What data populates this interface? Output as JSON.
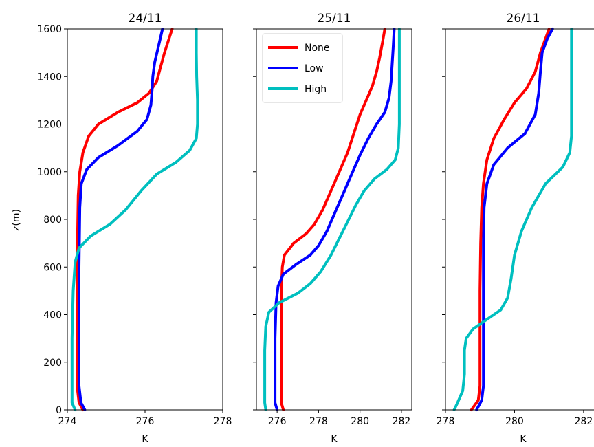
{
  "figure": {
    "ylabel": "z(m)"
  },
  "chart_data": [
    {
      "type": "line",
      "title": "24/11",
      "xlabel": "K",
      "ylabel": "z(m)",
      "xlim": [
        274,
        278
      ],
      "ylim": [
        0,
        1600
      ],
      "xticks": [
        "274",
        "276",
        "278"
      ],
      "yticks": [
        "0",
        "200",
        "400",
        "600",
        "800",
        "1000",
        "1200",
        "1400",
        "1600"
      ],
      "series": [
        {
          "name": "None",
          "color": "#ff0000",
          "points": [
            [
              274.4,
              0
            ],
            [
              274.3,
              30
            ],
            [
              274.25,
              100
            ],
            [
              274.25,
              300
            ],
            [
              274.25,
              600
            ],
            [
              274.28,
              900
            ],
            [
              274.32,
              1000
            ],
            [
              274.4,
              1080
            ],
            [
              274.55,
              1150
            ],
            [
              274.8,
              1200
            ],
            [
              275.3,
              1250
            ],
            [
              275.8,
              1290
            ],
            [
              276.1,
              1330
            ],
            [
              276.3,
              1380
            ],
            [
              276.4,
              1440
            ],
            [
              276.5,
              1500
            ],
            [
              276.6,
              1550
            ],
            [
              276.7,
              1600
            ]
          ]
        },
        {
          "name": "Low",
          "color": "#0000ff",
          "points": [
            [
              274.45,
              0
            ],
            [
              274.35,
              30
            ],
            [
              274.3,
              100
            ],
            [
              274.3,
              300
            ],
            [
              274.3,
              600
            ],
            [
              274.32,
              850
            ],
            [
              274.36,
              950
            ],
            [
              274.5,
              1010
            ],
            [
              274.8,
              1060
            ],
            [
              275.3,
              1110
            ],
            [
              275.8,
              1170
            ],
            [
              276.05,
              1220
            ],
            [
              276.15,
              1280
            ],
            [
              276.18,
              1340
            ],
            [
              276.2,
              1400
            ],
            [
              276.25,
              1460
            ],
            [
              276.35,
              1530
            ],
            [
              276.45,
              1600
            ]
          ]
        },
        {
          "name": "High",
          "color": "#00bfbf",
          "points": [
            [
              274.2,
              0
            ],
            [
              274.12,
              30
            ],
            [
              274.12,
              100
            ],
            [
              274.12,
              300
            ],
            [
              274.15,
              500
            ],
            [
              274.2,
              620
            ],
            [
              274.3,
              680
            ],
            [
              274.6,
              730
            ],
            [
              275.1,
              780
            ],
            [
              275.5,
              840
            ],
            [
              275.9,
              920
            ],
            [
              276.3,
              990
            ],
            [
              276.8,
              1040
            ],
            [
              277.15,
              1090
            ],
            [
              277.32,
              1140
            ],
            [
              277.35,
              1200
            ],
            [
              277.35,
              1300
            ],
            [
              277.33,
              1400
            ],
            [
              277.32,
              1500
            ],
            [
              277.32,
              1600
            ]
          ]
        }
      ]
    },
    {
      "type": "line",
      "title": "25/11",
      "xlabel": "K",
      "xlim": [
        275,
        282.5
      ],
      "ylim": [
        0,
        1600
      ],
      "xticks": [
        "276",
        "278",
        "280",
        "282"
      ],
      "legend": {
        "position": "top-left",
        "entries": [
          "None",
          "Low",
          "High"
        ]
      },
      "series": [
        {
          "name": "None",
          "color": "#ff0000",
          "points": [
            [
              276.3,
              0
            ],
            [
              276.2,
              30
            ],
            [
              276.2,
              100
            ],
            [
              276.2,
              300
            ],
            [
              276.2,
              500
            ],
            [
              276.25,
              600
            ],
            [
              276.35,
              650
            ],
            [
              276.8,
              700
            ],
            [
              277.4,
              740
            ],
            [
              277.8,
              780
            ],
            [
              278.2,
              840
            ],
            [
              278.6,
              920
            ],
            [
              279.0,
              1000
            ],
            [
              279.4,
              1080
            ],
            [
              279.7,
              1160
            ],
            [
              280.0,
              1240
            ],
            [
              280.3,
              1300
            ],
            [
              280.6,
              1360
            ],
            [
              280.8,
              1420
            ],
            [
              280.95,
              1480
            ],
            [
              281.1,
              1550
            ],
            [
              281.2,
              1600
            ]
          ]
        },
        {
          "name": "Low",
          "color": "#0000ff",
          "points": [
            [
              276.0,
              0
            ],
            [
              275.9,
              30
            ],
            [
              275.9,
              100
            ],
            [
              275.9,
              300
            ],
            [
              275.95,
              450
            ],
            [
              276.05,
              520
            ],
            [
              276.3,
              570
            ],
            [
              276.9,
              610
            ],
            [
              277.6,
              650
            ],
            [
              278.0,
              690
            ],
            [
              278.4,
              750
            ],
            [
              278.8,
              830
            ],
            [
              279.2,
              910
            ],
            [
              279.6,
              990
            ],
            [
              280.0,
              1070
            ],
            [
              280.4,
              1140
            ],
            [
              280.8,
              1200
            ],
            [
              281.2,
              1250
            ],
            [
              281.4,
              1310
            ],
            [
              281.5,
              1380
            ],
            [
              281.55,
              1450
            ],
            [
              281.6,
              1520
            ],
            [
              281.65,
              1600
            ]
          ]
        },
        {
          "name": "High",
          "color": "#00bfbf",
          "points": [
            [
              275.45,
              0
            ],
            [
              275.4,
              30
            ],
            [
              275.4,
              100
            ],
            [
              275.4,
              250
            ],
            [
              275.45,
              350
            ],
            [
              275.6,
              410
            ],
            [
              276.1,
              450
            ],
            [
              277.0,
              490
            ],
            [
              277.6,
              530
            ],
            [
              278.1,
              580
            ],
            [
              278.6,
              650
            ],
            [
              279.0,
              720
            ],
            [
              279.4,
              790
            ],
            [
              279.8,
              860
            ],
            [
              280.2,
              920
            ],
            [
              280.7,
              970
            ],
            [
              281.3,
              1010
            ],
            [
              281.7,
              1050
            ],
            [
              281.85,
              1100
            ],
            [
              281.9,
              1200
            ],
            [
              281.9,
              1300
            ],
            [
              281.9,
              1400
            ],
            [
              281.9,
              1500
            ],
            [
              281.9,
              1600
            ]
          ]
        }
      ]
    },
    {
      "type": "line",
      "title": "26/11",
      "xlabel": "K",
      "xlim": [
        278,
        282.5
      ],
      "ylim": [
        0,
        1600
      ],
      "xticks": [
        "278",
        "280",
        "282"
      ],
      "series": [
        {
          "name": "None",
          "color": "#ff0000",
          "points": [
            [
              278.75,
              0
            ],
            [
              278.95,
              40
            ],
            [
              279.0,
              100
            ],
            [
              279.0,
              300
            ],
            [
              279.0,
              500
            ],
            [
              279.02,
              700
            ],
            [
              279.05,
              850
            ],
            [
              279.1,
              950
            ],
            [
              279.2,
              1050
            ],
            [
              279.4,
              1140
            ],
            [
              279.7,
              1220
            ],
            [
              280.0,
              1290
            ],
            [
              280.35,
              1350
            ],
            [
              280.6,
              1420
            ],
            [
              280.75,
              1500
            ],
            [
              280.9,
              1560
            ],
            [
              281.0,
              1600
            ]
          ]
        },
        {
          "name": "Low",
          "color": "#0000ff",
          "points": [
            [
              278.9,
              0
            ],
            [
              279.05,
              40
            ],
            [
              279.1,
              100
            ],
            [
              279.1,
              300
            ],
            [
              279.1,
              500
            ],
            [
              279.1,
              700
            ],
            [
              279.12,
              850
            ],
            [
              279.2,
              950
            ],
            [
              279.4,
              1030
            ],
            [
              279.8,
              1100
            ],
            [
              280.3,
              1160
            ],
            [
              280.6,
              1240
            ],
            [
              280.7,
              1330
            ],
            [
              280.75,
              1420
            ],
            [
              280.8,
              1500
            ],
            [
              280.95,
              1560
            ],
            [
              281.1,
              1600
            ]
          ]
        },
        {
          "name": "High",
          "color": "#00bfbf",
          "points": [
            [
              278.25,
              0
            ],
            [
              278.35,
              30
            ],
            [
              278.5,
              80
            ],
            [
              278.55,
              150
            ],
            [
              278.55,
              250
            ],
            [
              278.6,
              300
            ],
            [
              278.8,
              340
            ],
            [
              279.2,
              380
            ],
            [
              279.6,
              420
            ],
            [
              279.8,
              470
            ],
            [
              279.9,
              550
            ],
            [
              280.0,
              650
            ],
            [
              280.2,
              750
            ],
            [
              280.5,
              850
            ],
            [
              280.9,
              950
            ],
            [
              281.4,
              1020
            ],
            [
              281.6,
              1080
            ],
            [
              281.65,
              1150
            ],
            [
              281.65,
              1300
            ],
            [
              281.65,
              1450
            ],
            [
              281.65,
              1600
            ]
          ]
        }
      ]
    }
  ]
}
